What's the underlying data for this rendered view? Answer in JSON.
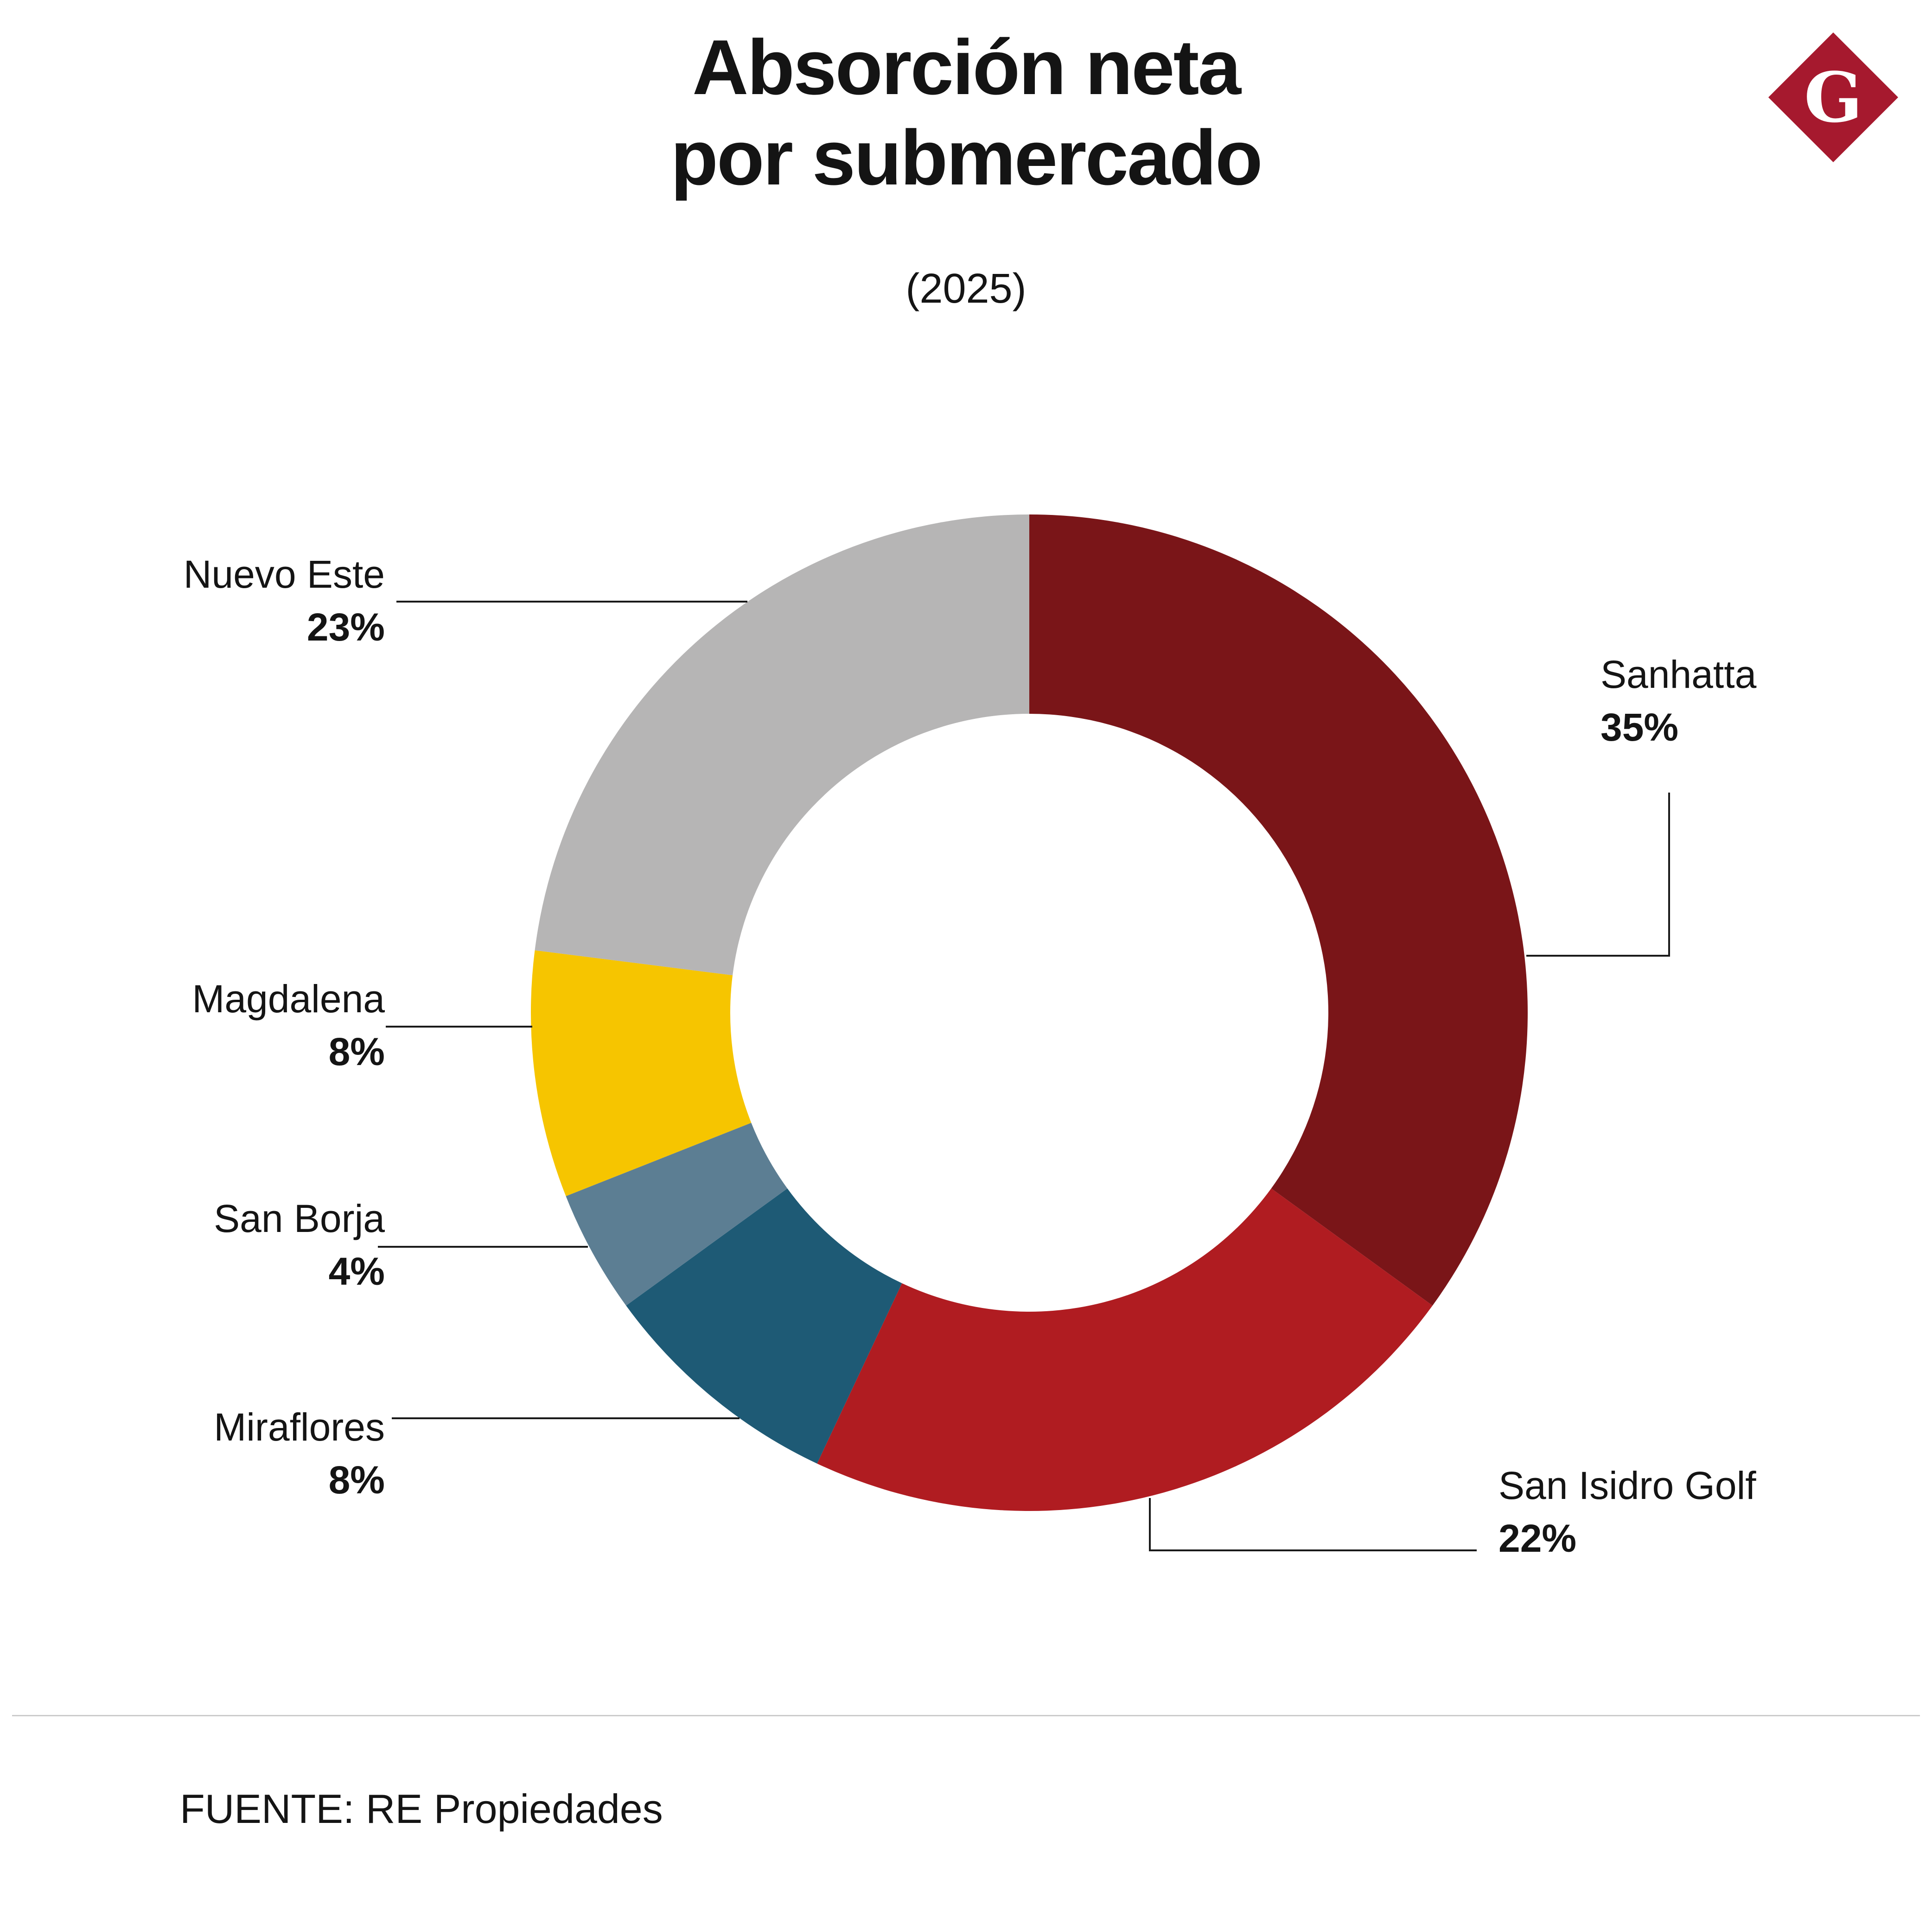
{
  "header": {
    "title_line1": "Absorción neta",
    "title_line2": "por submercado",
    "subtitle": "(2025)"
  },
  "logo": {
    "letter": "G",
    "color": "#A6192E"
  },
  "footer": {
    "source": "FUENTE: RE Propiedades"
  },
  "chart_data": {
    "type": "pie",
    "subtype": "donut",
    "title": "Absorción neta por submercado",
    "subtitle": "(2025)",
    "unit": "%",
    "total": 100,
    "start_angle_deg": 0,
    "direction": "clockwise",
    "legend": "none, outside callout labels with leader lines",
    "inner_radius_ratio": 0.6,
    "slices": [
      {
        "label": "Sanhatta",
        "value": 35,
        "display": "35%",
        "color": "#7A1518"
      },
      {
        "label": "San Isidro Golf",
        "value": 22,
        "display": "22%",
        "color": "#B01C21"
      },
      {
        "label": "Miraflores",
        "value": 8,
        "display": "8%",
        "color": "#1E5A75"
      },
      {
        "label": "San Borja",
        "value": 4,
        "display": "4%",
        "color": "#5C7E93"
      },
      {
        "label": "Magdalena",
        "value": 8,
        "display": "8%",
        "color": "#F6C500"
      },
      {
        "label": "Nuevo Este",
        "value": 23,
        "display": "23%",
        "color": "#B6B5B5"
      }
    ]
  }
}
